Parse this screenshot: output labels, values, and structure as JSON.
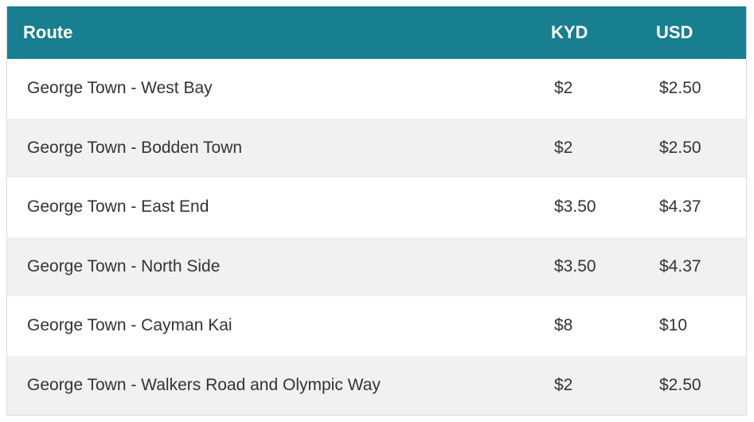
{
  "table": {
    "headers": {
      "route": "Route",
      "kyd": "KYD",
      "usd": "USD"
    },
    "rows": [
      {
        "route": "George Town - West Bay",
        "kyd": "$2",
        "usd": "$2.50"
      },
      {
        "route": "George Town - Bodden Town",
        "kyd": "$2",
        "usd": "$2.50"
      },
      {
        "route": "George Town - East End",
        "kyd": "$3.50",
        "usd": "$4.37"
      },
      {
        "route": "George Town - North Side",
        "kyd": "$3.50",
        "usd": "$4.37"
      },
      {
        "route": "George Town - Cayman Kai",
        "kyd": "$8",
        "usd": "$10"
      },
      {
        "route": "George Town - Walkers Road and Olympic Way",
        "kyd": "$2",
        "usd": "$2.50"
      }
    ]
  },
  "colors": {
    "header_background": "#177f8f",
    "header_text": "#ffffff",
    "row_alt_background": "#f1f1f1",
    "row_background": "#ffffff",
    "body_text": "#333333"
  }
}
